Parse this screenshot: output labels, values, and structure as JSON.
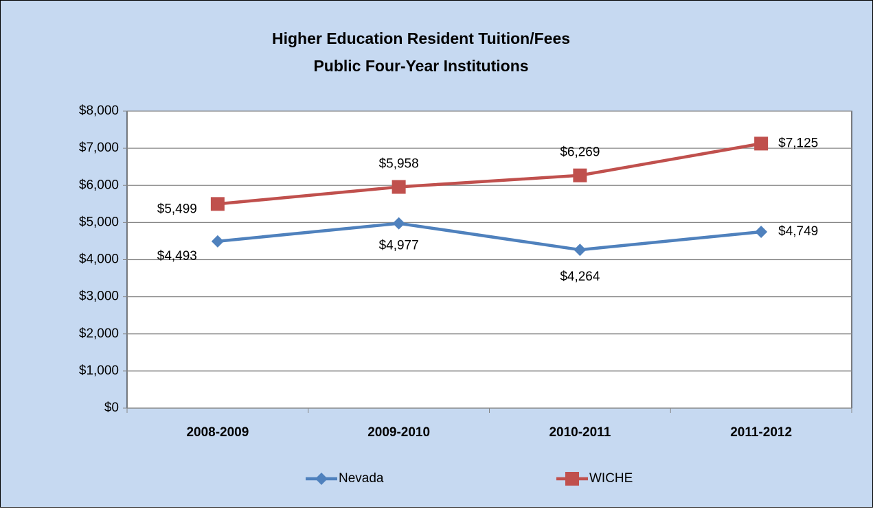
{
  "chart_data": {
    "type": "line",
    "title": "Higher Education Resident Tuition/Fees",
    "subtitle": "Public Four-Year Institutions",
    "categories": [
      "2008-2009",
      "2009-2010",
      "2010-2011",
      "2011-2012"
    ],
    "series": [
      {
        "name": "Nevada",
        "color": "#4f81bd",
        "marker": "diamond",
        "values": [
          4493,
          4977,
          4264,
          4749
        ],
        "value_labels": [
          "$4,493",
          "$4,977",
          "$4,264",
          "$4,749"
        ]
      },
      {
        "name": "WICHE",
        "color": "#c0504d",
        "marker": "square",
        "values": [
          5499,
          5958,
          6269,
          7125
        ],
        "value_labels": [
          "$5,499",
          "$5,958",
          "$6,269",
          "$7,125"
        ]
      }
    ],
    "ylim": [
      0,
      8000
    ],
    "yticks": [
      {
        "value": 0,
        "label": "$0"
      },
      {
        "value": 1000,
        "label": "$1,000"
      },
      {
        "value": 2000,
        "label": "$2,000"
      },
      {
        "value": 3000,
        "label": "$3,000"
      },
      {
        "value": 4000,
        "label": "$4,000"
      },
      {
        "value": 5000,
        "label": "$5,000"
      },
      {
        "value": 6000,
        "label": "$6,000"
      },
      {
        "value": 7000,
        "label": "$7,000"
      },
      {
        "value": 8000,
        "label": "$8,000"
      }
    ],
    "grid": true,
    "legend": "bottom"
  }
}
